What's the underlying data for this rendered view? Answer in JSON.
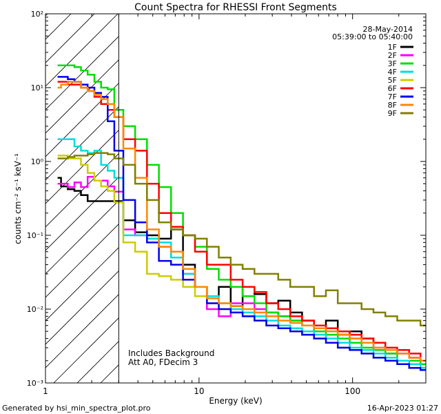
{
  "chart_data": {
    "type": "line",
    "title": "Count Spectra for RHESSI Front Segments",
    "xlabel": "Energy (keV)",
    "ylabel": "counts cm⁻² s⁻¹ keV⁻¹",
    "xscale": "log",
    "yscale": "log",
    "xlim": [
      1,
      300
    ],
    "ylim": [
      0.001,
      100
    ],
    "x_tick_labels": [
      {
        "value": 1,
        "label": "1"
      },
      {
        "value": 10,
        "label": "10"
      },
      {
        "value": 100,
        "label": "100"
      }
    ],
    "y_tick_labels": [
      {
        "value": 0.001,
        "label": "10⁻³"
      },
      {
        "value": 0.01,
        "label": "10⁻²"
      },
      {
        "value": 0.1,
        "label": "10⁻¹"
      },
      {
        "value": 1,
        "label": "10⁰"
      },
      {
        "value": 10,
        "label": "10¹"
      },
      {
        "value": 100,
        "label": "10²"
      }
    ],
    "date": "28-May-2014",
    "time_range": "05:39:00 to 05:40:00",
    "annotations": [
      "Includes Background",
      "Att A0, FDecim 3"
    ],
    "hatched_region_x": [
      1,
      3
    ],
    "legend_position": "top-right",
    "series": [
      {
        "name": "1F",
        "color": "#000000",
        "x": [
          1.2,
          1.33,
          1.47,
          1.62,
          1.79,
          1.98,
          2.19,
          2.42,
          2.67,
          2.95,
          3.5,
          4.2,
          5,
          6,
          7.2,
          8.6,
          10.3,
          12.3,
          14.7,
          17.6,
          21,
          25.1,
          30,
          35.9,
          42.9,
          51.3,
          61.3,
          73.3,
          87.6,
          104.7,
          125.1,
          149.5,
          178.7,
          213.6,
          255.3,
          300
        ],
        "y": [
          0.6,
          0.46,
          0.42,
          0.4,
          0.35,
          0.29,
          0.29,
          0.29,
          0.29,
          0.29,
          0.16,
          0.11,
          0.1,
          0.09,
          0.12,
          0.04,
          0.02,
          0.015,
          0.02,
          0.011,
          0.02,
          0.016,
          0.012,
          0.013,
          0.009,
          0.007,
          0.006,
          0.007,
          0.0045,
          0.005,
          0.004,
          0.0035,
          0.0025,
          0.0028,
          0.0022,
          0.002
        ]
      },
      {
        "name": "2F",
        "color": "#ff00ff",
        "x": [
          1.2,
          1.33,
          1.47,
          1.62,
          1.79,
          1.98,
          2.19,
          2.42,
          2.67,
          2.95,
          3.5,
          4.2,
          5,
          6,
          7.2,
          8.6,
          10.3,
          12.3,
          14.7,
          17.6,
          21,
          25.1,
          30,
          35.9,
          42.9,
          51.3,
          61.3,
          73.3,
          87.6,
          104.7,
          125.1,
          149.5,
          178.7,
          213.6,
          255.3,
          300
        ],
        "y": [
          0.5,
          0.5,
          0.45,
          0.52,
          0.45,
          0.62,
          0.55,
          0.55,
          0.46,
          0.39,
          0.12,
          0.1,
          0.09,
          0.07,
          0.05,
          0.03,
          0.02,
          0.01,
          0.008,
          0.012,
          0.012,
          0.01,
          0.009,
          0.008,
          0.007,
          0.006,
          0.0055,
          0.005,
          0.0045,
          0.004,
          0.0035,
          0.003,
          0.0028,
          0.0025,
          0.0022,
          0.002
        ]
      },
      {
        "name": "3F",
        "color": "#00dd00",
        "x": [
          1.2,
          1.33,
          1.47,
          1.62,
          1.79,
          1.98,
          2.19,
          2.42,
          2.67,
          2.95,
          3.5,
          4.2,
          5,
          6,
          7.2,
          8.6,
          10.3,
          12.3,
          14.7,
          17.6,
          21,
          25.1,
          30,
          35.9,
          42.9,
          51.3,
          61.3,
          73.3,
          87.6,
          104.7,
          125.1,
          149.5,
          178.7,
          213.6,
          255.3,
          300
        ],
        "y": [
          20,
          20,
          20,
          19,
          17,
          15,
          12,
          10,
          9.5,
          5,
          3,
          2,
          0.9,
          0.45,
          0.2,
          0.1,
          0.07,
          0.035,
          0.025,
          0.02,
          0.015,
          0.012,
          0.009,
          0.008,
          0.007,
          0.006,
          0.005,
          0.0045,
          0.004,
          0.0035,
          0.003,
          0.0028,
          0.0025,
          0.002,
          0.002,
          0.0018
        ]
      },
      {
        "name": "4F",
        "color": "#00dddd",
        "x": [
          1.2,
          1.33,
          1.47,
          1.62,
          1.79,
          1.98,
          2.19,
          2.42,
          2.67,
          2.95,
          3.5,
          4.2,
          5,
          6,
          7.2,
          8.6,
          10.3,
          12.3,
          14.7,
          17.6,
          21,
          25.1,
          30,
          35.9,
          42.9,
          51.3,
          61.3,
          73.3,
          87.6,
          104.7,
          125.1,
          149.5,
          178.7,
          213.6,
          255.3,
          300
        ],
        "y": [
          2,
          2,
          2,
          1.6,
          1.4,
          1.3,
          1.4,
          0.9,
          0.75,
          0.6,
          0.1,
          0.1,
          0.09,
          0.08,
          0.05,
          0.03,
          0.02,
          0.015,
          0.012,
          0.01,
          0.009,
          0.008,
          0.007,
          0.006,
          0.0055,
          0.005,
          0.0045,
          0.004,
          0.0035,
          0.003,
          0.0028,
          0.0025,
          0.0022,
          0.002,
          0.0018,
          0.0016
        ]
      },
      {
        "name": "5F",
        "color": "#cccc00",
        "x": [
          1.2,
          1.33,
          1.47,
          1.62,
          1.79,
          1.98,
          2.19,
          2.42,
          2.67,
          2.95,
          3.5,
          4.2,
          5,
          6,
          7.2,
          8.6,
          10.3,
          12.3,
          14.7,
          17.6,
          21,
          25.1,
          30,
          35.9,
          42.9,
          51.3,
          61.3,
          73.3,
          87.6,
          104.7,
          125.1,
          149.5,
          178.7,
          213.6,
          255.3,
          300
        ],
        "y": [
          1.2,
          1.2,
          1.1,
          1.1,
          0.9,
          0.7,
          0.55,
          0.46,
          0.4,
          0.28,
          0.08,
          0.06,
          0.03,
          0.028,
          0.025,
          0.02,
          0.015,
          0.012,
          0.01,
          0.009,
          0.008,
          0.007,
          0.006,
          0.0055,
          0.005,
          0.0045,
          0.004,
          0.0035,
          0.003,
          0.0028,
          0.0025,
          0.0022,
          0.002,
          0.0018,
          0.0016,
          0.0015
        ]
      },
      {
        "name": "6F",
        "color": "#ff0000",
        "x": [
          1.2,
          1.33,
          1.47,
          1.62,
          1.79,
          1.98,
          2.19,
          2.42,
          2.67,
          2.95,
          3.5,
          4.2,
          5,
          6,
          7.2,
          8.6,
          10.3,
          12.3,
          14.7,
          17.6,
          21,
          25.1,
          30,
          35.9,
          42.9,
          51.3,
          61.3,
          73.3,
          87.6,
          104.7,
          125.1,
          149.5,
          178.7,
          213.6,
          255.3,
          300
        ],
        "y": [
          12,
          12,
          11,
          11,
          10,
          9,
          7.5,
          6,
          5,
          4,
          2,
          1.4,
          0.5,
          0.2,
          0.13,
          0.1,
          0.06,
          0.04,
          0.04,
          0.025,
          0.02,
          0.017,
          0.012,
          0.01,
          0.008,
          0.007,
          0.006,
          0.0055,
          0.005,
          0.0045,
          0.004,
          0.0035,
          0.003,
          0.0028,
          0.0025,
          0.002
        ]
      },
      {
        "name": "7F",
        "color": "#0000ee",
        "x": [
          1.2,
          1.33,
          1.47,
          1.62,
          1.79,
          1.98,
          2.19,
          2.42,
          2.67,
          2.95,
          3.5,
          4.2,
          5,
          6,
          7.2,
          8.6,
          10.3,
          12.3,
          14.7,
          17.6,
          21,
          25.1,
          30,
          35.9,
          42.9,
          51.3,
          61.3,
          73.3,
          87.6,
          104.7,
          125.1,
          149.5,
          178.7,
          213.6,
          255.3,
          300
        ],
        "y": [
          14,
          14,
          13,
          12,
          11,
          10,
          8.5,
          7.5,
          3.5,
          1.4,
          0.3,
          0.15,
          0.08,
          0.045,
          0.04,
          0.025,
          0.02,
          0.012,
          0.01,
          0.009,
          0.008,
          0.007,
          0.006,
          0.0055,
          0.005,
          0.0045,
          0.004,
          0.0035,
          0.003,
          0.0028,
          0.0025,
          0.0022,
          0.002,
          0.0018,
          0.0016,
          0.0015
        ]
      },
      {
        "name": "8F",
        "color": "#ff8800",
        "x": [
          1.2,
          1.33,
          1.47,
          1.62,
          1.79,
          1.98,
          2.19,
          2.42,
          2.67,
          2.95,
          3.5,
          4.2,
          5,
          6,
          7.2,
          8.6,
          10.3,
          12.3,
          14.7,
          17.6,
          21,
          25.1,
          30,
          35.9,
          42.9,
          51.3,
          61.3,
          73.3,
          87.6,
          104.7,
          125.1,
          149.5,
          178.7,
          213.6,
          255.3,
          300
        ],
        "y": [
          10,
          11,
          12,
          12,
          10,
          9,
          8,
          7,
          6,
          4,
          1.5,
          0.6,
          0.12,
          0.07,
          0.06,
          0.035,
          0.02,
          0.014,
          0.012,
          0.011,
          0.01,
          0.009,
          0.008,
          0.007,
          0.0065,
          0.006,
          0.0055,
          0.005,
          0.0045,
          0.004,
          0.0035,
          0.003,
          0.0028,
          0.0025,
          0.0022,
          0.002
        ]
      },
      {
        "name": "9F",
        "color": "#808000",
        "x": [
          1.2,
          1.33,
          1.47,
          1.62,
          1.79,
          1.98,
          2.19,
          2.42,
          2.67,
          2.95,
          3.5,
          4.2,
          5,
          6,
          7.2,
          8.6,
          10.3,
          12.3,
          14.7,
          17.6,
          21,
          25.1,
          30,
          35.9,
          42.9,
          51.3,
          61.3,
          73.3,
          87.6,
          104.7,
          125.1,
          149.5,
          178.7,
          213.6,
          255.3,
          300
        ],
        "y": [
          1.1,
          1.1,
          1.15,
          1.2,
          1.2,
          1.25,
          1.3,
          1.3,
          1.25,
          1.1,
          0.9,
          0.5,
          0.3,
          0.15,
          0.12,
          0.1,
          0.09,
          0.07,
          0.05,
          0.04,
          0.035,
          0.03,
          0.03,
          0.025,
          0.02,
          0.02,
          0.015,
          0.018,
          0.012,
          0.012,
          0.01,
          0.009,
          0.008,
          0.007,
          0.007,
          0.006
        ]
      }
    ]
  },
  "footer": {
    "generated_by": "Generated by hsi_min_spectra_plot.pro",
    "timestamp": "16-Apr-2023 01:27"
  }
}
